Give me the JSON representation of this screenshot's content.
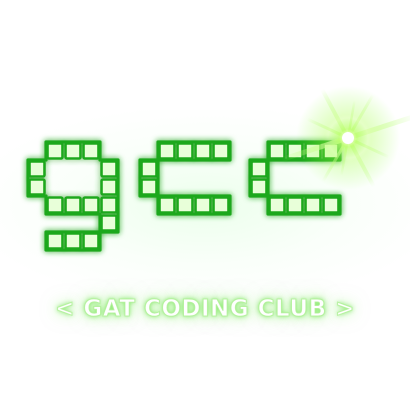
{
  "logo": {
    "wordmark": "gcc",
    "letters": [
      {
        "char": "g",
        "name": "letter-g"
      },
      {
        "char": "c",
        "name": "letter-c-first"
      },
      {
        "char": "c",
        "name": "letter-c-second"
      }
    ],
    "sparkle": "lens-flare-sparkle"
  },
  "tagline": {
    "left_chevron": "<",
    "text": "GAT CODING CLUB",
    "right_chevron": ">"
  },
  "colors": {
    "tile_fill": "#e8ffd9",
    "tile_stroke": "#1ea81c",
    "glow": "#6de84e",
    "sparkle_core": "#f4ffd0",
    "sparkle_glow": "#8cff3a",
    "background": "#ffffff"
  }
}
